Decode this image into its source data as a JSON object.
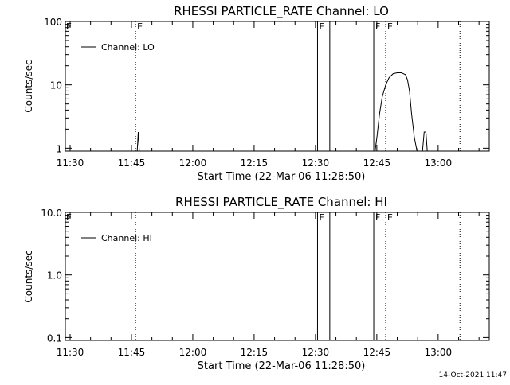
{
  "chart_data": [
    {
      "type": "line",
      "title": "RHESSI PARTICLE_RATE Channel: LO",
      "xlabel": "Start Time (22-Mar-06 11:28:50)",
      "ylabel": "Counts/sec",
      "y_scale": "log",
      "xlim": [
        "11:28:50",
        "13:12:30"
      ],
      "ylim": [
        0.9,
        100
      ],
      "x_ticks": [
        "11:30",
        "11:45",
        "12:00",
        "12:15",
        "12:30",
        "12:45",
        "13:00"
      ],
      "y_ticks": [
        "1",
        "10",
        "100"
      ],
      "grid": false,
      "legend": {
        "position": "top-left",
        "entries": [
          "Channel: LO"
        ]
      },
      "series": [
        {
          "name": "Channel: LO",
          "x": [
            "11:46:25",
            "11:46:40",
            "11:46:55",
            "11:47:10",
            "11:47:30",
            "12:44:35",
            "12:45:05",
            "12:45:40",
            "12:46:20",
            "12:47:10",
            "12:48:00",
            "12:49:00",
            "12:50:00",
            "12:51:00",
            "12:52:00",
            "12:52:30",
            "12:53:00",
            "12:53:30",
            "12:54:10",
            "12:54:50",
            "12:56:10",
            "12:56:35",
            "12:57:00",
            "12:57:20"
          ],
          "y": [
            0.9,
            1.8,
            0.9,
            null,
            null,
            0.9,
            1.6,
            3.5,
            6.5,
            10,
            13,
            15,
            15.5,
            15.5,
            14.5,
            12,
            8,
            3.5,
            1.5,
            0.9,
            0.9,
            1.8,
            1.8,
            0.9
          ]
        }
      ],
      "event_lines": [
        {
          "x": "11:46:00",
          "style": "dotted",
          "label": "E"
        },
        {
          "x": "12:30:30",
          "style": "solid",
          "label": "F"
        },
        {
          "x": "12:33:30",
          "style": "solid",
          "label": ""
        },
        {
          "x": "12:44:15",
          "style": "solid",
          "label": "F"
        },
        {
          "x": "12:47:10",
          "style": "dotted",
          "label": "E"
        },
        {
          "x": "13:05:20",
          "style": "dotted",
          "label": ""
        }
      ],
      "left_marker_label": "E"
    },
    {
      "type": "line",
      "title": "RHESSI PARTICLE_RATE Channel: HI",
      "xlabel": "Start Time (22-Mar-06 11:28:50)",
      "ylabel": "Counts/sec",
      "y_scale": "log",
      "xlim": [
        "11:28:50",
        "13:12:30"
      ],
      "ylim": [
        0.09,
        10
      ],
      "x_ticks": [
        "11:30",
        "11:45",
        "12:00",
        "12:15",
        "12:30",
        "12:45",
        "13:00"
      ],
      "y_ticks": [
        "0.1",
        "1.0",
        "10.0"
      ],
      "grid": false,
      "legend": {
        "position": "top-left",
        "entries": [
          "Channel: HI"
        ]
      },
      "series": [
        {
          "name": "Channel: HI",
          "x": [],
          "y": []
        }
      ],
      "event_lines": [
        {
          "x": "11:46:00",
          "style": "dotted",
          "label": ""
        },
        {
          "x": "12:30:30",
          "style": "solid",
          "label": "F"
        },
        {
          "x": "12:33:30",
          "style": "solid",
          "label": ""
        },
        {
          "x": "12:44:15",
          "style": "solid",
          "label": "F"
        },
        {
          "x": "12:47:10",
          "style": "dotted",
          "label": "E"
        },
        {
          "x": "13:05:20",
          "style": "dotted",
          "label": ""
        }
      ],
      "left_marker_label": "E"
    }
  ],
  "footer": {
    "timestamp": "14-Oct-2021 11:47"
  },
  "colors": {
    "background": "#ffffff",
    "foreground": "#000000"
  }
}
